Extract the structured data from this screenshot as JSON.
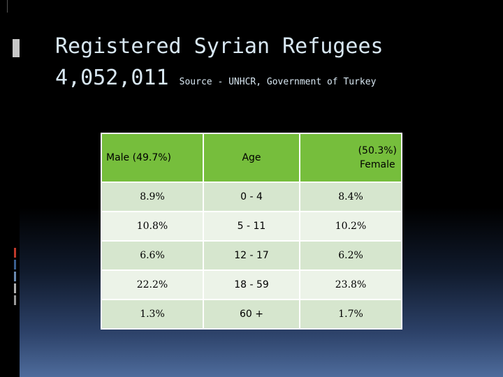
{
  "title": "Registered Syrian Refugees",
  "total": "4,052,011",
  "source": "Source - UNHCR, Government of Turkey",
  "table": {
    "headers": {
      "male": "Male (49.7%)",
      "age": "Age",
      "female_pct": "(50.3%)",
      "female_label": "Female"
    },
    "rows": [
      {
        "male": "8.9%",
        "age": "0 - 4",
        "female": "8.4%"
      },
      {
        "male": "10.8%",
        "age": "5 - 11",
        "female": "10.2%"
      },
      {
        "male": "6.6%",
        "age": "12 - 17",
        "female": "6.2%"
      },
      {
        "male": "22.2%",
        "age": "18 - 59",
        "female": "23.8%"
      },
      {
        "male": "1.3%",
        "age": "60 +",
        "female": "1.7%"
      }
    ]
  },
  "colors": {
    "header_green": "#76be3c",
    "row_dark": "#d6e6ce",
    "row_light": "#ecf3e8",
    "title_text": "#d8e7f2"
  }
}
